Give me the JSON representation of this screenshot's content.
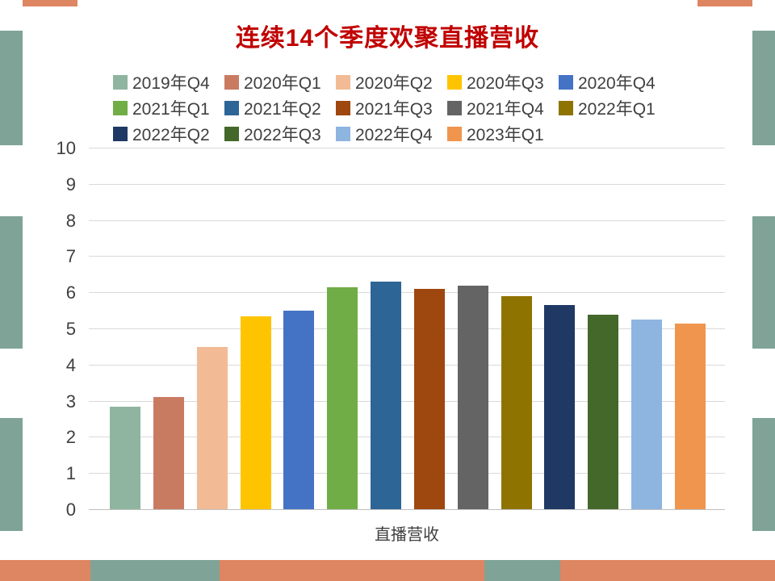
{
  "title": "连续14个季度欢聚直播营收",
  "palette": {
    "title_color": "#C00000",
    "frame_coral": "#DE8562",
    "frame_teal": "#7FA497",
    "gridline": "#D9D9D9"
  },
  "chart_data": {
    "type": "bar",
    "title": "连续14个季度欢聚直播营收",
    "xlabel": "直播营收",
    "ylabel": "",
    "ylim": [
      0,
      10
    ],
    "yticks": [
      0,
      1,
      2,
      3,
      4,
      5,
      6,
      7,
      8,
      9,
      10
    ],
    "grid": true,
    "legend_position": "top",
    "categories": [
      "直播营收"
    ],
    "series": [
      {
        "name": "2019年Q4",
        "color": "#8FB5A0",
        "values": [
          2.85
        ]
      },
      {
        "name": "2020年Q1",
        "color": "#C97B61",
        "values": [
          3.1
        ]
      },
      {
        "name": "2020年Q2",
        "color": "#F2BB95",
        "values": [
          4.5
        ]
      },
      {
        "name": "2020年Q3",
        "color": "#FFC400",
        "values": [
          5.35
        ]
      },
      {
        "name": "2020年Q4",
        "color": "#4472C4",
        "values": [
          5.5
        ]
      },
      {
        "name": "2021年Q1",
        "color": "#70AD47",
        "values": [
          6.15
        ]
      },
      {
        "name": "2021年Q2",
        "color": "#2D6597",
        "values": [
          6.3
        ]
      },
      {
        "name": "2021年Q3",
        "color": "#9E470E",
        "values": [
          6.1
        ]
      },
      {
        "name": "2021年Q4",
        "color": "#646464",
        "values": [
          6.2
        ]
      },
      {
        "name": "2022年Q1",
        "color": "#8F7300",
        "values": [
          5.9
        ]
      },
      {
        "name": "2022年Q2",
        "color": "#1F3864",
        "values": [
          5.65
        ]
      },
      {
        "name": "2022年Q3",
        "color": "#44682A",
        "values": [
          5.4
        ]
      },
      {
        "name": "2022年Q4",
        "color": "#8EB4E0",
        "values": [
          5.25
        ]
      },
      {
        "name": "2023年Q1",
        "color": "#F0954E",
        "values": [
          5.15
        ]
      }
    ]
  }
}
